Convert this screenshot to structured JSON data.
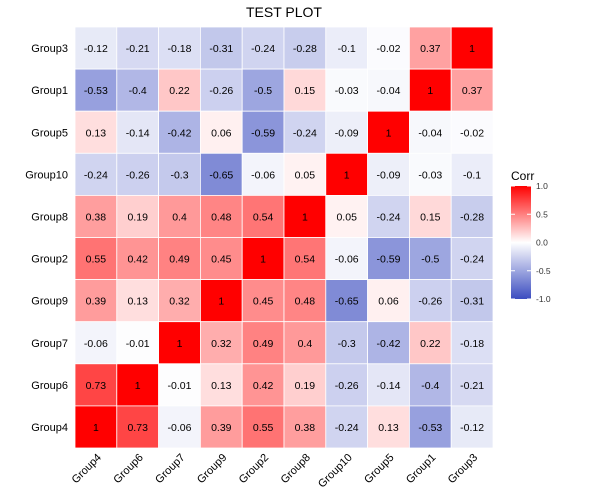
{
  "chart_data": {
    "type": "heatmap",
    "title": "TEST PLOT",
    "rows": [
      "Group3",
      "Group1",
      "Group5",
      "Group10",
      "Group8",
      "Group2",
      "Group9",
      "Group7",
      "Group6",
      "Group4"
    ],
    "columns": [
      "Group4",
      "Group6",
      "Group7",
      "Group9",
      "Group2",
      "Group8",
      "Group10",
      "Group5",
      "Group1",
      "Group3"
    ],
    "values": [
      [
        -0.12,
        -0.21,
        -0.18,
        -0.31,
        -0.24,
        -0.28,
        -0.1,
        -0.02,
        0.37,
        1
      ],
      [
        -0.53,
        -0.4,
        0.22,
        -0.26,
        -0.5,
        0.15,
        -0.03,
        -0.04,
        1,
        0.37
      ],
      [
        0.13,
        -0.14,
        -0.42,
        0.06,
        -0.59,
        -0.24,
        -0.09,
        1,
        -0.04,
        -0.02
      ],
      [
        -0.24,
        -0.26,
        -0.3,
        -0.65,
        -0.06,
        0.05,
        1,
        -0.09,
        -0.03,
        -0.1
      ],
      [
        0.38,
        0.19,
        0.4,
        0.48,
        0.54,
        1,
        0.05,
        -0.24,
        0.15,
        -0.28
      ],
      [
        0.55,
        0.42,
        0.49,
        0.45,
        1,
        0.54,
        -0.06,
        -0.59,
        -0.5,
        -0.24
      ],
      [
        0.39,
        0.13,
        0.32,
        1,
        0.45,
        0.48,
        -0.65,
        0.06,
        -0.26,
        -0.31
      ],
      [
        -0.06,
        -0.01,
        1,
        0.32,
        0.49,
        0.4,
        -0.3,
        -0.42,
        0.22,
        -0.18
      ],
      [
        0.73,
        1,
        -0.01,
        0.13,
        0.42,
        0.19,
        -0.26,
        -0.14,
        -0.4,
        -0.21
      ],
      [
        1,
        0.73,
        -0.06,
        0.39,
        0.55,
        0.38,
        -0.24,
        0.13,
        -0.53,
        -0.12
      ]
    ],
    "colorscale": {
      "low": "#3b4cc0",
      "mid": "#ffffff",
      "high": "#ff0000"
    },
    "legend": {
      "title": "Corr",
      "range": [
        -1,
        1
      ],
      "ticks": [
        1,
        0.5,
        0,
        -0.5,
        -1
      ],
      "tick_labels": [
        "1.0",
        "0.5",
        "0.0",
        "-0.5",
        "-1.0"
      ],
      "placement": "right"
    },
    "background": "#ebebeb"
  }
}
